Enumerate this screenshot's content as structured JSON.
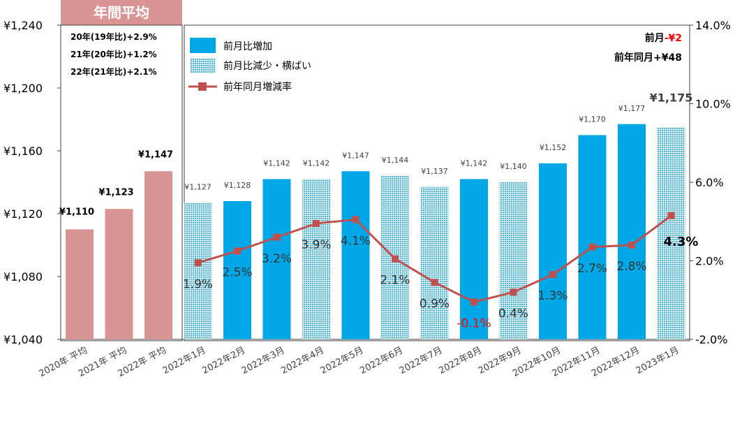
{
  "chart_data": {
    "type": "bar",
    "categories": [
      "2020年 平均",
      "2021年 平均",
      "2022年 平均",
      "2022年1月",
      "2022年2月",
      "2022年3月",
      "2022年4月",
      "2022年5月",
      "2022年6月",
      "2022年7月",
      "2022年8月",
      "2022年9月",
      "2022年10月",
      "2022年11月",
      "2022年12月",
      "2023年1月"
    ],
    "series": [
      {
        "name": "年間平均",
        "values": [
          1110,
          1123,
          1147,
          null,
          null,
          null,
          null,
          null,
          null,
          null,
          null,
          null,
          null,
          null,
          null,
          null
        ],
        "color": "#d99594"
      },
      {
        "name": "前月比増加",
        "values": [
          null,
          null,
          null,
          null,
          1128,
          1142,
          null,
          1147,
          null,
          null,
          1142,
          null,
          1152,
          1170,
          1177,
          null
        ],
        "color": "#00a7e6"
      },
      {
        "name": "前月比減少・横ばい",
        "values": [
          null,
          null,
          null,
          1127,
          null,
          null,
          1142,
          null,
          1144,
          1137,
          null,
          1140,
          null,
          null,
          null,
          1175
        ],
        "color": "#7ec8e0"
      },
      {
        "name": "前年同月増減率",
        "type": "line",
        "axis": "right",
        "values": [
          null,
          null,
          null,
          1.9,
          2.5,
          3.2,
          3.9,
          4.1,
          2.1,
          0.9,
          -0.1,
          0.4,
          1.3,
          2.7,
          2.8,
          4.3
        ],
        "color": "#c0504d"
      }
    ],
    "bar_labels": [
      "¥1,110",
      "¥1,123",
      "¥1,147",
      "¥1,127",
      "¥1,128",
      "¥1,142",
      "¥1,142",
      "¥1,147",
      "¥1,144",
      "¥1,137",
      "¥1,142",
      "¥1,140",
      "¥1,152",
      "¥1,170",
      "¥1,177",
      "¥1,175"
    ],
    "line_labels": [
      "",
      "",
      "",
      "1.9%",
      "2.5%",
      "3.2%",
      "3.9%",
      "4.1%",
      "2.1%",
      "0.9%",
      "-0.1%",
      "0.4%",
      "1.3%",
      "2.7%",
      "2.8%",
      "4.3%"
    ],
    "negative_color": "#ff0000",
    "left_axis": {
      "ylim": [
        1040,
        1240
      ],
      "ticks": [
        1040,
        1080,
        1120,
        1160,
        1200,
        1240
      ],
      "tick_labels": [
        "¥1,040",
        "¥1,080",
        "¥1,120",
        "¥1,160",
        "¥1,200",
        "¥1,240"
      ]
    },
    "right_axis": {
      "ylim": [
        -2,
        14
      ],
      "ticks": [
        -2,
        2,
        6,
        10,
        14
      ],
      "tick_labels": [
        "-2.0%",
        "2.0%",
        "6.0%",
        "10.0%",
        "14.0%"
      ]
    },
    "annual_box": {
      "title": "年間平均",
      "lines": [
        "20年(19年比)+2.9%",
        "21年(20年比)+1.2%",
        "22年(21年比)+2.1%"
      ]
    },
    "legend": {
      "position": "top-left",
      "items": [
        "前月比増加",
        "前月比減少・横ばい",
        "前年同月増減率"
      ]
    },
    "annotations": {
      "mom_prefix": "前月",
      "mom_value": "-¥2",
      "yoy": "前年同月+¥48"
    },
    "grid": false
  }
}
